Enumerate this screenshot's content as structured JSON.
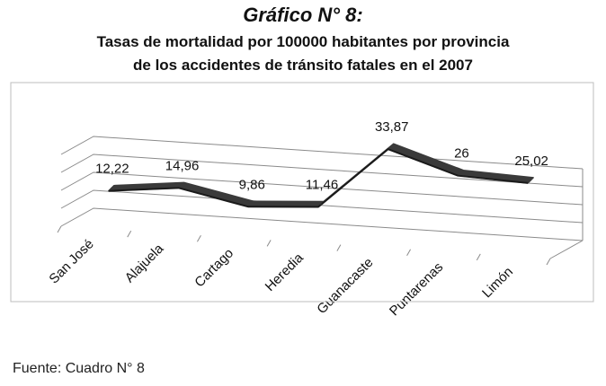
{
  "figure": {
    "label": "Gráfico N° 8:",
    "title_line1": "Tasas de mortalidad por 100000 habitantes por provincia",
    "title_line2": "de los accidentes de tránsito fatales en el 2007",
    "source": "Fuente: Cuadro N° 8"
  },
  "chart_data": {
    "type": "line",
    "title": "Tasas de mortalidad por 100000 habitantes por provincia de los accidentes de tránsito fatales en el 2007",
    "xlabel": "",
    "ylabel": "",
    "categories": [
      "San José",
      "Alajuela",
      "Cartago",
      "Heredia",
      "Guanacaste",
      "Puntarenas",
      "Limón"
    ],
    "values": [
      12.22,
      14.96,
      9.86,
      11.46,
      33.87,
      26,
      25.02
    ],
    "value_labels": [
      "12,22",
      "14,96",
      "9,86",
      "11,46",
      "33,87",
      "26",
      "25,02"
    ],
    "ylim": [
      0,
      40
    ],
    "grid": true,
    "style": "3d ribbon",
    "series_color": "#3a3a3a"
  }
}
